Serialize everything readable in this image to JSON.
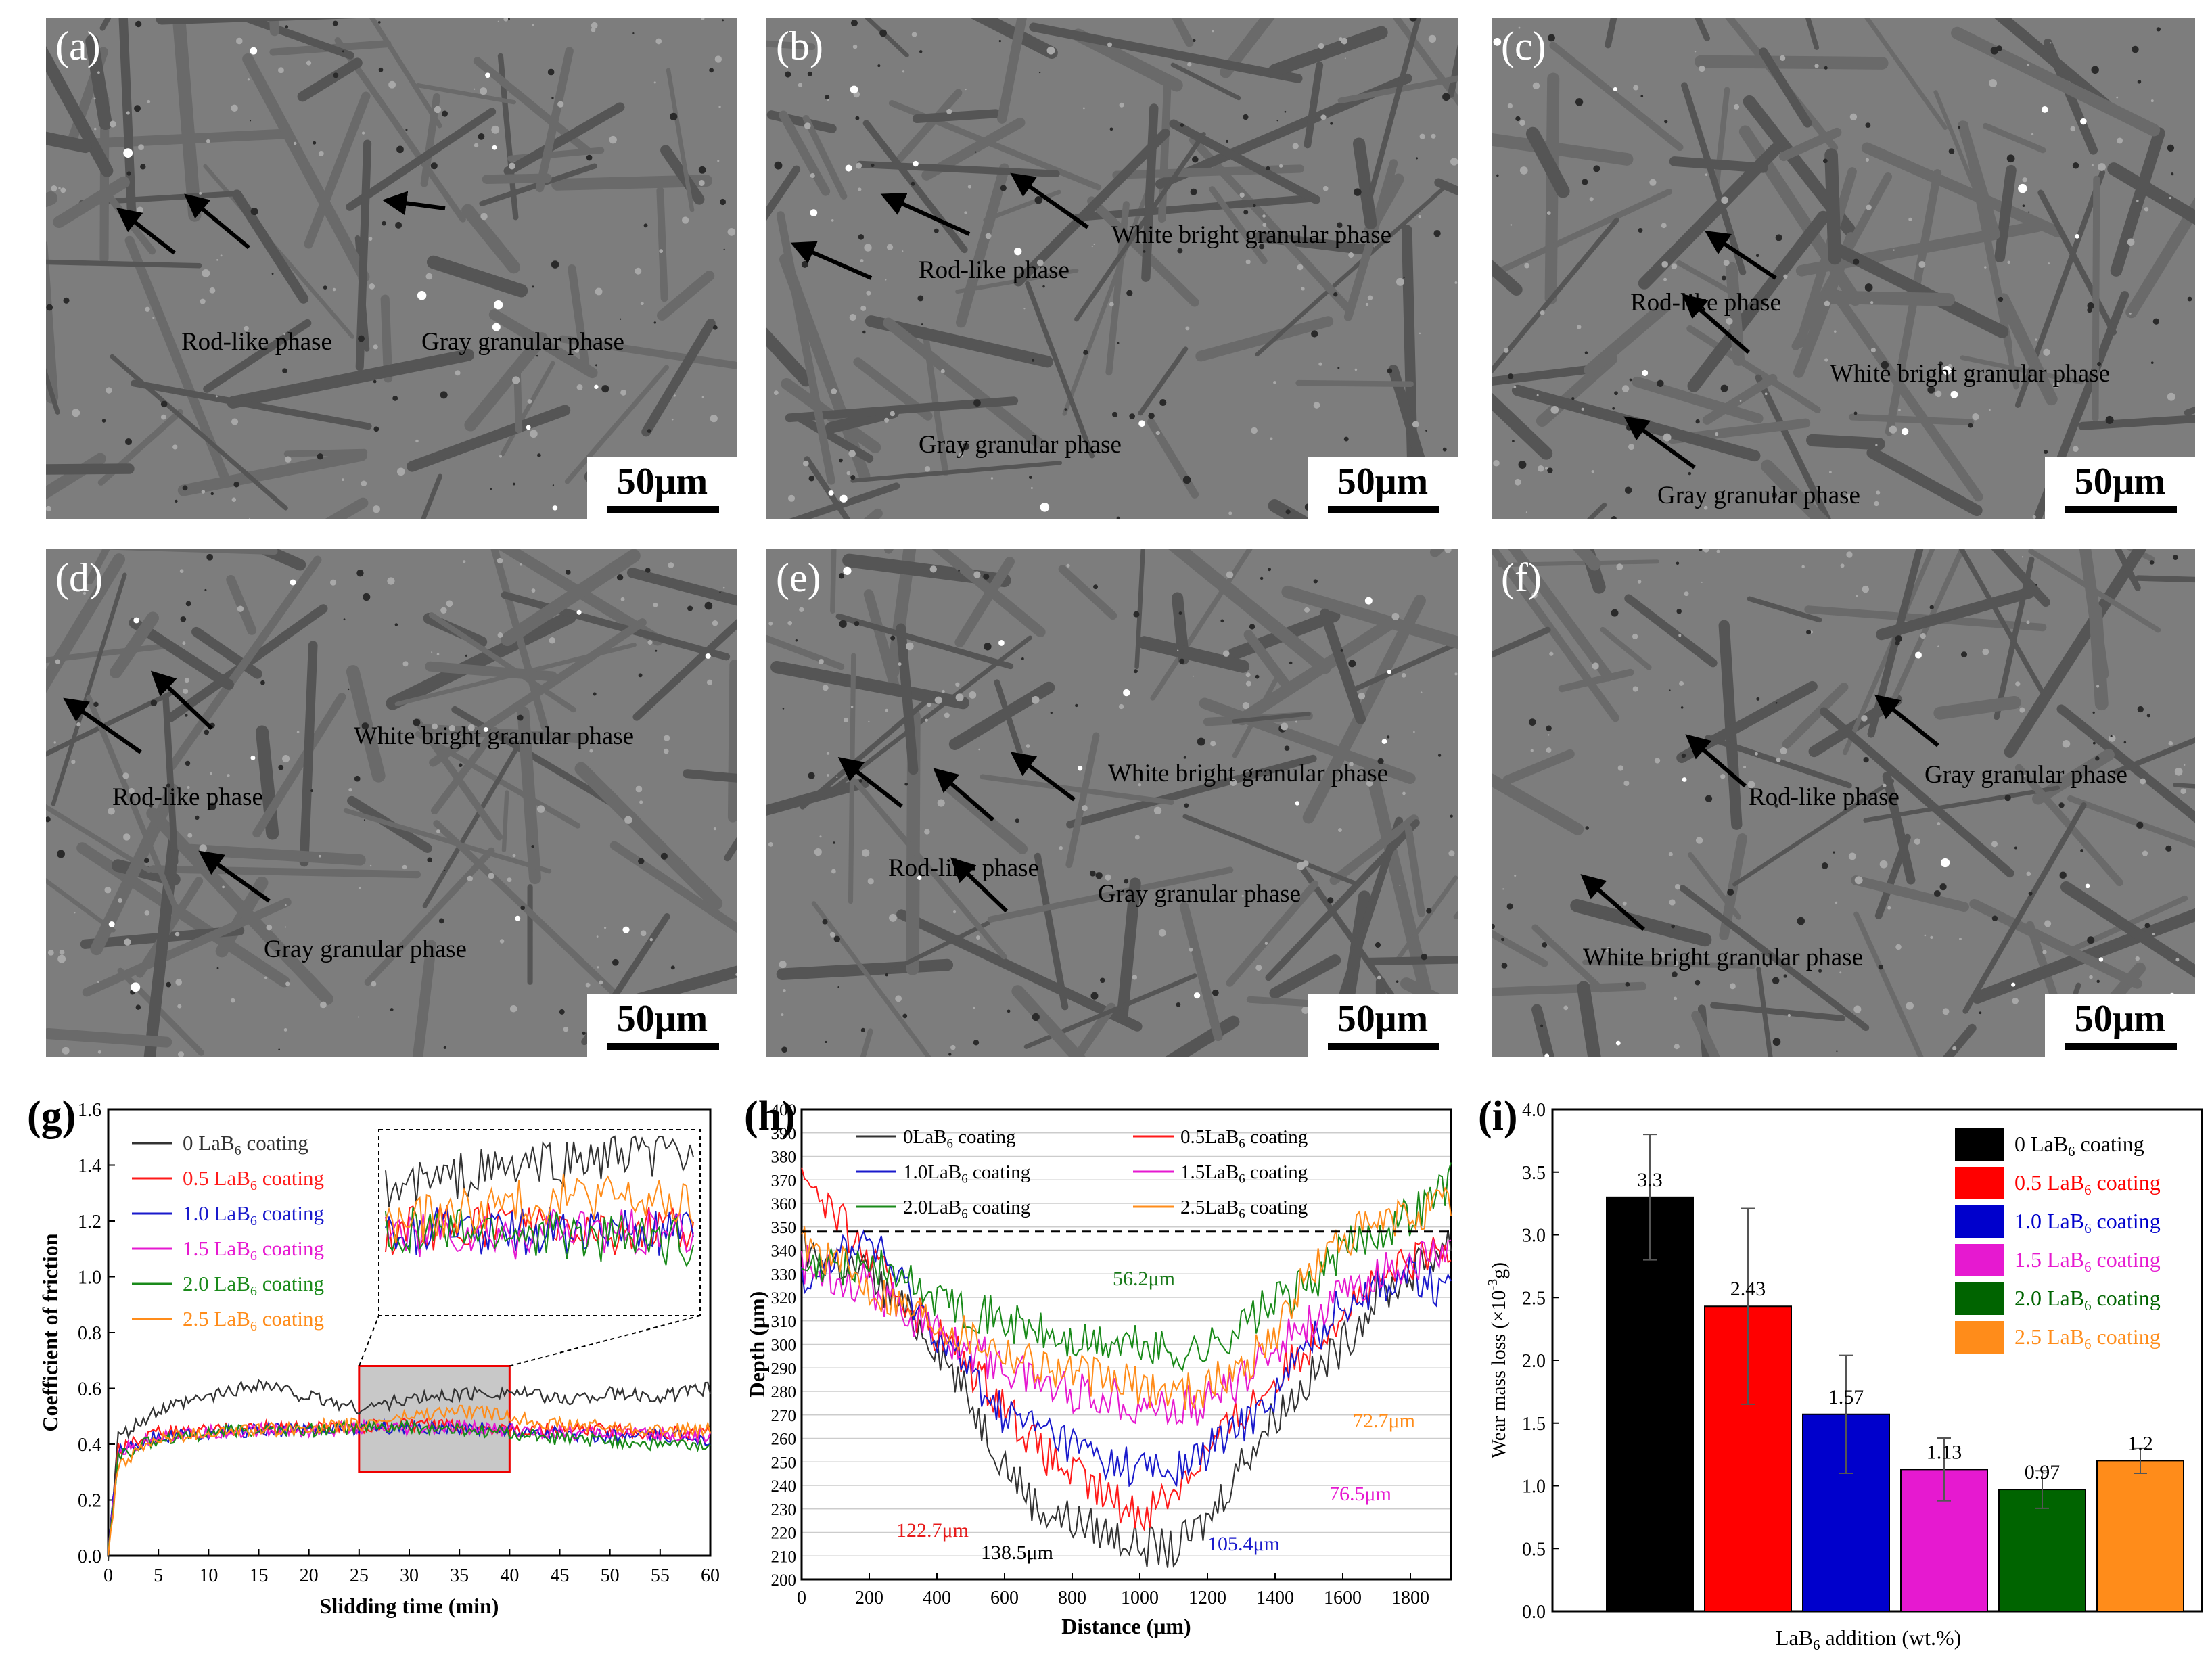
{
  "panels": [
    {
      "id": "a",
      "label": "(a)",
      "scale": "50μm",
      "notes": [
        {
          "text": "Rod-like phase"
        },
        {
          "text": "Gray granular phase"
        }
      ]
    },
    {
      "id": "b",
      "label": "(b)",
      "scale": "50μm",
      "notes": [
        {
          "text": "White bright granular phase"
        },
        {
          "text": "Rod-like phase"
        },
        {
          "text": "Gray granular phase"
        }
      ]
    },
    {
      "id": "c",
      "label": "(c)",
      "scale": "50μm",
      "notes": [
        {
          "text": "Rod-like phase"
        },
        {
          "text": "White bright granular phase"
        },
        {
          "text": "Gray granular phase"
        }
      ]
    },
    {
      "id": "d",
      "label": "(d)",
      "scale": "50μm",
      "notes": [
        {
          "text": "White bright granular phase"
        },
        {
          "text": "Rod-like phase"
        },
        {
          "text": "Gray granular phase"
        }
      ]
    },
    {
      "id": "e",
      "label": "(e)",
      "scale": "50μm",
      "notes": [
        {
          "text": "White bright granular  phase"
        },
        {
          "text": "Rod-like phase"
        },
        {
          "text": "Gray granular phase"
        }
      ]
    },
    {
      "id": "f",
      "label": "(f)",
      "scale": "50μm",
      "notes": [
        {
          "text": "Rod-like phase"
        },
        {
          "text": "Gray granular phase"
        },
        {
          "text": "White bright granular phase"
        }
      ]
    }
  ],
  "chart_data": [
    {
      "panel_label": "(g)",
      "type": "line",
      "xlabel": "Slidding time (min)",
      "ylabel": "Coefficient of friction",
      "xlim": [
        0,
        60
      ],
      "ylim": [
        0,
        1.6
      ],
      "xticks": [
        0,
        5,
        10,
        15,
        20,
        25,
        30,
        35,
        40,
        45,
        50,
        55,
        60
      ],
      "yticks": [
        0.0,
        0.2,
        0.4,
        0.6,
        0.8,
        1.0,
        1.2,
        1.4,
        1.6
      ],
      "legend_position": "top-left",
      "inset_range": [
        25,
        40
      ],
      "series": [
        {
          "legend": "0 LaB",
          "sub": "6",
          "suffix": " coating",
          "color": "#333333",
          "steady": 0.55,
          "x": [
            0,
            1,
            5,
            10,
            15,
            20,
            25,
            30,
            35,
            40,
            45,
            50,
            55,
            60
          ],
          "y": [
            0,
            0.42,
            0.52,
            0.57,
            0.62,
            0.57,
            0.53,
            0.56,
            0.58,
            0.59,
            0.56,
            0.58,
            0.57,
            0.6
          ]
        },
        {
          "legend": "0.5 LaB",
          "sub": "6",
          "suffix": " coating",
          "color": "#ff1a1a",
          "steady": 0.45,
          "x": [
            0,
            1,
            5,
            10,
            15,
            20,
            25,
            30,
            35,
            40,
            45,
            50,
            55,
            60
          ],
          "y": [
            0,
            0.38,
            0.44,
            0.45,
            0.46,
            0.46,
            0.46,
            0.47,
            0.46,
            0.46,
            0.45,
            0.45,
            0.44,
            0.44
          ]
        },
        {
          "legend": "1.0 LaB",
          "sub": "6",
          "suffix": " coating",
          "color": "#1a1acc",
          "steady": 0.44,
          "x": [
            0,
            1,
            5,
            10,
            15,
            20,
            25,
            30,
            35,
            40,
            45,
            50,
            55,
            60
          ],
          "y": [
            0,
            0.38,
            0.43,
            0.44,
            0.45,
            0.45,
            0.46,
            0.46,
            0.46,
            0.45,
            0.44,
            0.43,
            0.43,
            0.42
          ]
        },
        {
          "legend": "1.5 LaB",
          "sub": "6",
          "suffix": " coating",
          "color": "#e619d0",
          "steady": 0.44,
          "x": [
            0,
            1,
            5,
            10,
            15,
            20,
            25,
            30,
            35,
            40,
            45,
            50,
            55,
            60
          ],
          "y": [
            0,
            0.37,
            0.43,
            0.44,
            0.45,
            0.45,
            0.46,
            0.45,
            0.46,
            0.45,
            0.44,
            0.44,
            0.43,
            0.43
          ]
        },
        {
          "legend": "2.0 LaB",
          "sub": "6",
          "suffix": " coating",
          "color": "#1a8a1a",
          "steady": 0.43,
          "x": [
            0,
            1,
            5,
            10,
            15,
            20,
            25,
            30,
            35,
            40,
            45,
            50,
            55,
            60
          ],
          "y": [
            0,
            0.36,
            0.42,
            0.44,
            0.45,
            0.45,
            0.46,
            0.46,
            0.45,
            0.44,
            0.42,
            0.41,
            0.4,
            0.39
          ]
        },
        {
          "legend": "2.5 LaB",
          "sub": "6",
          "suffix": " coating",
          "color": "#ff8c1a",
          "steady": 0.47,
          "x": [
            0,
            1,
            5,
            10,
            15,
            20,
            25,
            30,
            35,
            40,
            45,
            50,
            55,
            60
          ],
          "y": [
            0,
            0.33,
            0.42,
            0.44,
            0.45,
            0.46,
            0.47,
            0.5,
            0.52,
            0.5,
            0.47,
            0.46,
            0.45,
            0.45
          ]
        }
      ]
    },
    {
      "panel_label": "(h)",
      "type": "line",
      "xlabel": "Distance (μm)",
      "ylabel": "Depth (μm)",
      "xlim": [
        0,
        1920
      ],
      "ylim": [
        200,
        400
      ],
      "xticks": [
        0,
        200,
        400,
        600,
        800,
        1000,
        1200,
        1400,
        1600,
        1800
      ],
      "yticks": [
        200,
        210,
        220,
        230,
        240,
        250,
        260,
        270,
        280,
        290,
        300,
        310,
        320,
        330,
        340,
        350,
        360,
        370,
        380,
        390,
        400
      ],
      "reference_line": 348,
      "legend_position": "top",
      "annotations": [
        {
          "text": "56.2μm",
          "color": "#1a7a1a"
        },
        {
          "text": "72.7μm",
          "color": "#ff8c1a"
        },
        {
          "text": "76.5μm",
          "color": "#e619d0"
        },
        {
          "text": "122.7μm",
          "color": "#e61919"
        },
        {
          "text": "105.4μm",
          "color": "#1a1acc"
        },
        {
          "text": "138.5μm",
          "color": "#000000"
        }
      ],
      "series": [
        {
          "legend": "0LaB",
          "sub": "6",
          "suffix": " coating",
          "color": "#333333",
          "x": [
            0,
            200,
            400,
            600,
            700,
            800,
            900,
            1000,
            1100,
            1200,
            1300,
            1400,
            1500,
            1600,
            1700,
            1800,
            1920
          ],
          "y": [
            340,
            330,
            300,
            250,
            230,
            225,
            220,
            215,
            212,
            225,
            250,
            270,
            285,
            300,
            320,
            330,
            345
          ]
        },
        {
          "legend": "0.5LaB",
          "sub": "6",
          "suffix": " coating",
          "color": "#ff1a1a",
          "x": [
            0,
            200,
            400,
            600,
            700,
            800,
            900,
            1000,
            1100,
            1200,
            1300,
            1400,
            1500,
            1600,
            1700,
            1800,
            1920
          ],
          "y": [
            375,
            335,
            305,
            275,
            255,
            245,
            235,
            228,
            238,
            255,
            270,
            285,
            300,
            315,
            325,
            335,
            340
          ]
        },
        {
          "legend": "1.0LaB",
          "sub": "6",
          "suffix": " coating",
          "color": "#1a1acc",
          "x": [
            0,
            200,
            400,
            600,
            700,
            800,
            900,
            1000,
            1100,
            1200,
            1300,
            1400,
            1500,
            1600,
            1700,
            1800,
            1920
          ],
          "y": [
            330,
            345,
            305,
            270,
            265,
            258,
            250,
            248,
            245,
            255,
            265,
            280,
            300,
            318,
            325,
            330,
            320
          ]
        },
        {
          "legend": "1.5LaB",
          "sub": "6",
          "suffix": " coating",
          "color": "#e619d0",
          "x": [
            0,
            200,
            400,
            600,
            700,
            800,
            900,
            1000,
            1100,
            1200,
            1300,
            1400,
            1500,
            1600,
            1700,
            1800,
            1920
          ],
          "y": [
            335,
            325,
            305,
            290,
            285,
            280,
            278,
            275,
            272,
            275,
            285,
            300,
            310,
            320,
            330,
            335,
            338
          ]
        },
        {
          "legend": "2.0LaB",
          "sub": "6",
          "suffix": " coating",
          "color": "#1a8a1a",
          "x": [
            0,
            200,
            400,
            600,
            700,
            800,
            900,
            1000,
            1100,
            1200,
            1300,
            1400,
            1500,
            1600,
            1700,
            1800,
            1920
          ],
          "y": [
            330,
            335,
            320,
            310,
            305,
            300,
            300,
            300,
            296,
            298,
            308,
            318,
            325,
            340,
            348,
            355,
            370
          ]
        },
        {
          "legend": "2.5LaB",
          "sub": "6",
          "suffix": " coating",
          "color": "#ff8c1a",
          "x": [
            0,
            200,
            400,
            600,
            700,
            800,
            900,
            1000,
            1100,
            1200,
            1300,
            1400,
            1500,
            1600,
            1700,
            1800,
            1920
          ],
          "y": [
            345,
            325,
            310,
            298,
            292,
            288,
            285,
            282,
            280,
            282,
            290,
            305,
            330,
            345,
            350,
            355,
            360
          ]
        }
      ]
    },
    {
      "panel_label": "(i)",
      "type": "bar",
      "xlabel": "LaB",
      "xlabel_sub": "6",
      "xlabel_suffix": " addition (wt.%)",
      "ylabel": "Wear mass loss (×10",
      "ylabel_sup": "-3",
      "ylabel_suffix": "g)",
      "ylim": [
        0,
        4.0
      ],
      "yticks": [
        "0.0",
        "0.5",
        "1.0",
        "1.5",
        "2.0",
        "2.5",
        "3.0",
        "3.5",
        "4.0"
      ],
      "legend_position": "top-right",
      "categories": [
        "0 LaB6 coating",
        "0.5 LaB6 coating",
        "1.0 LaB6 coating",
        "1.5 LaB6 coating",
        "2.0 LaB6 coating",
        "2.5 LaB6 coating"
      ],
      "values": [
        3.3,
        2.43,
        1.57,
        1.13,
        0.97,
        1.2
      ],
      "value_labels": [
        "3.3",
        "2.43",
        "1.57",
        "1.13",
        "0.97",
        "1.2"
      ],
      "errors": [
        0.5,
        0.78,
        0.47,
        0.25,
        0.15,
        0.1
      ],
      "series": [
        {
          "legend": "0 LaB",
          "sub": "6",
          "suffix": " coating",
          "color": "#000000"
        },
        {
          "legend": "0.5 LaB",
          "sub": "6",
          "suffix": " coating",
          "color": "#ff0000"
        },
        {
          "legend": "1.0 LaB",
          "sub": "6",
          "suffix": " coating",
          "color": "#0000cc"
        },
        {
          "legend": "1.5 LaB",
          "sub": "6",
          "suffix": " coating",
          "color": "#e619d0"
        },
        {
          "legend": "2.0 LaB",
          "sub": "6",
          "suffix": " coating",
          "color": "#006400"
        },
        {
          "legend": "2.5 LaB",
          "sub": "6",
          "suffix": " coating",
          "color": "#ff8c1a"
        }
      ]
    }
  ]
}
